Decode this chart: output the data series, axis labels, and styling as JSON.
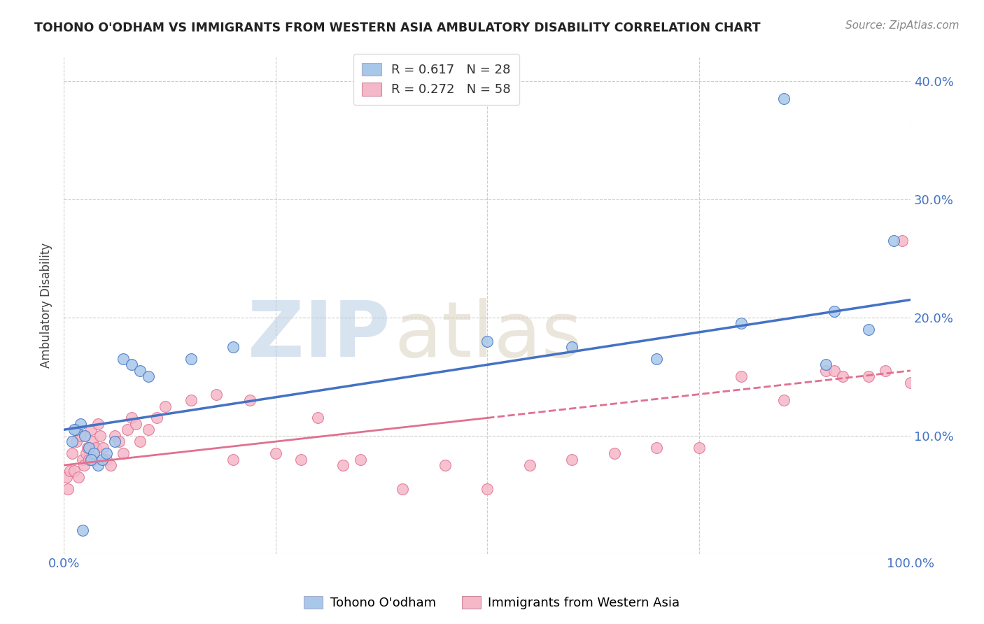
{
  "title": "TOHONO O'ODHAM VS IMMIGRANTS FROM WESTERN ASIA AMBULATORY DISABILITY CORRELATION CHART",
  "source": "Source: ZipAtlas.com",
  "ylabel": "Ambulatory Disability",
  "bg_color": "#ffffff",
  "grid_color": "#cccccc",
  "blue_color": "#a8c8ea",
  "pink_color": "#f5b8c8",
  "blue_line_color": "#4472c4",
  "pink_line_color": "#e07090",
  "legend_label1": "Tohono O'odham",
  "legend_label2": "Immigrants from Western Asia",
  "watermark_zip": "ZIP",
  "watermark_atlas": "atlas",
  "blue_x": [
    1.0,
    1.5,
    2.0,
    2.5,
    3.0,
    3.5,
    4.0,
    4.5,
    5.0,
    6.0,
    7.0,
    8.0,
    9.0,
    10.0,
    15.0,
    20.0,
    60.0,
    70.0,
    80.0,
    85.0,
    90.0,
    91.0,
    95.0,
    98.0,
    50.0,
    2.2,
    1.2,
    3.2
  ],
  "blue_y": [
    9.5,
    10.5,
    11.0,
    10.0,
    9.0,
    8.5,
    7.5,
    8.0,
    8.5,
    9.5,
    16.5,
    16.0,
    15.5,
    15.0,
    16.5,
    17.5,
    17.5,
    16.5,
    19.5,
    38.5,
    16.0,
    20.5,
    19.0,
    26.5,
    18.0,
    2.0,
    10.5,
    8.0
  ],
  "pink_x": [
    0.3,
    0.5,
    0.7,
    1.0,
    1.2,
    1.5,
    1.7,
    2.0,
    2.2,
    2.4,
    2.6,
    2.8,
    3.0,
    3.2,
    3.4,
    3.6,
    3.8,
    4.0,
    4.3,
    4.6,
    5.0,
    5.5,
    6.0,
    6.5,
    7.0,
    7.5,
    8.0,
    8.5,
    9.0,
    10.0,
    11.0,
    12.0,
    15.0,
    18.0,
    20.0,
    22.0,
    25.0,
    30.0,
    35.0,
    40.0,
    45.0,
    50.0,
    55.0,
    60.0,
    65.0,
    70.0,
    75.0,
    80.0,
    85.0,
    90.0,
    91.0,
    92.0,
    95.0,
    97.0,
    99.0,
    100.0,
    28.0,
    33.0
  ],
  "pink_y": [
    6.5,
    5.5,
    7.0,
    8.5,
    7.0,
    9.5,
    6.5,
    10.0,
    8.0,
    7.5,
    8.5,
    9.0,
    8.0,
    10.5,
    9.5,
    8.0,
    9.0,
    11.0,
    10.0,
    9.0,
    8.0,
    7.5,
    10.0,
    9.5,
    8.5,
    10.5,
    11.5,
    11.0,
    9.5,
    10.5,
    11.5,
    12.5,
    13.0,
    13.5,
    8.0,
    13.0,
    8.5,
    11.5,
    8.0,
    5.5,
    7.5,
    5.5,
    7.5,
    8.0,
    8.5,
    9.0,
    9.0,
    15.0,
    13.0,
    15.5,
    15.5,
    15.0,
    15.0,
    15.5,
    26.5,
    14.5,
    8.0,
    7.5
  ],
  "blue_line_x0": 0,
  "blue_line_y0": 10.5,
  "blue_line_x1": 100,
  "blue_line_y1": 21.5,
  "pink_solid_x0": 0,
  "pink_solid_y0": 7.5,
  "pink_solid_x1": 50,
  "pink_solid_y1": 11.5,
  "pink_dash_x0": 50,
  "pink_dash_y0": 11.5,
  "pink_dash_x1": 100,
  "pink_dash_y1": 15.5,
  "xlim": [
    0,
    100
  ],
  "ylim": [
    0,
    42
  ],
  "yticks": [
    0,
    10,
    20,
    30,
    40
  ],
  "xticks": [
    0,
    25,
    50,
    75,
    100
  ]
}
